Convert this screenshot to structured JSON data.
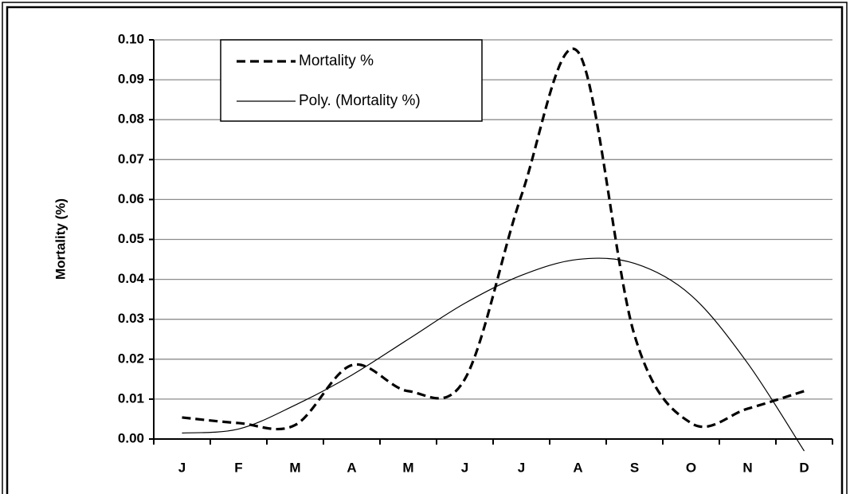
{
  "chart_data": {
    "type": "line",
    "y_label": "Mortality (%)",
    "categories": [
      "J",
      "F",
      "M",
      "A",
      "M",
      "J",
      "J",
      "A",
      "S",
      "O",
      "N",
      "D"
    ],
    "series": [
      {
        "name": "Mortality %",
        "color": "#000000",
        "line_style": "dashed",
        "values": [
          0.0054,
          0.004,
          0.0035,
          0.0185,
          0.012,
          0.015,
          0.061,
          0.097,
          0.026,
          0.004,
          0.0076,
          0.012
        ]
      },
      {
        "name": "Poly. (Mortality %)",
        "color": "#000000",
        "line_style": "solid",
        "values": [
          0.0015,
          0.0025,
          0.0085,
          0.016,
          0.025,
          0.034,
          0.041,
          0.045,
          0.044,
          0.036,
          0.019,
          -0.003
        ]
      }
    ],
    "ylim": [
      0,
      0.1
    ],
    "yticks": [
      {
        "value": 0,
        "label": "0.00"
      },
      {
        "value": 0.01,
        "label": "0.01"
      },
      {
        "value": 0.02,
        "label": "0.02"
      },
      {
        "value": 0.03,
        "label": "0.03"
      },
      {
        "value": 0.04,
        "label": "0.04"
      },
      {
        "value": 0.05,
        "label": "0.05"
      },
      {
        "value": 0.06,
        "label": "0.06"
      },
      {
        "value": 0.07,
        "label": "0.07"
      },
      {
        "value": 0.08,
        "label": "0.08"
      },
      {
        "value": 0.09,
        "label": "0.09"
      },
      {
        "value": 0.1,
        "label": "0.10"
      }
    ],
    "grid": true,
    "legend": "top-left"
  }
}
